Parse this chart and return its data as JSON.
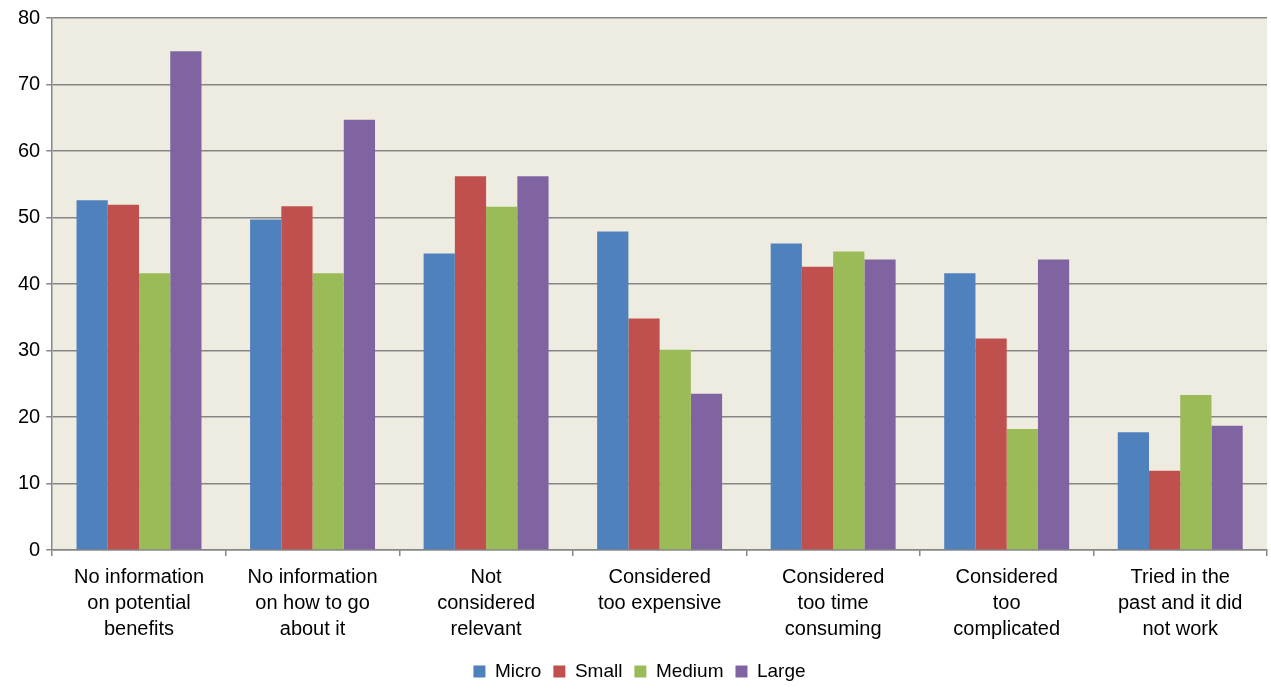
{
  "chart_data": {
    "type": "bar",
    "categories": [
      "No information on potential benefits",
      "No information on how to go about it",
      "Not considered relevant",
      "Considered too expensive",
      "Considered too time consuming",
      "Considered too complicated",
      "Tried in the past and it did not work"
    ],
    "series": [
      {
        "name": "Micro",
        "color": "#4f81bd",
        "values": [
          52.6,
          49.7,
          44.6,
          47.9,
          46.1,
          41.6,
          17.7
        ]
      },
      {
        "name": "Small",
        "color": "#c0504d",
        "values": [
          51.9,
          51.7,
          56.2,
          34.8,
          42.6,
          31.8,
          11.9
        ]
      },
      {
        "name": "Medium",
        "color": "#9bbb59",
        "values": [
          41.6,
          41.6,
          51.6,
          30.1,
          44.9,
          18.2,
          23.3
        ]
      },
      {
        "name": "Large",
        "color": "#8064a2",
        "values": [
          75.0,
          64.7,
          56.2,
          23.5,
          43.7,
          43.7,
          18.7
        ]
      }
    ],
    "ylim": [
      0,
      80
    ],
    "yticks": [
      0,
      10,
      20,
      30,
      40,
      50,
      60,
      70,
      80
    ],
    "grid": "y",
    "legend": "bottom"
  }
}
